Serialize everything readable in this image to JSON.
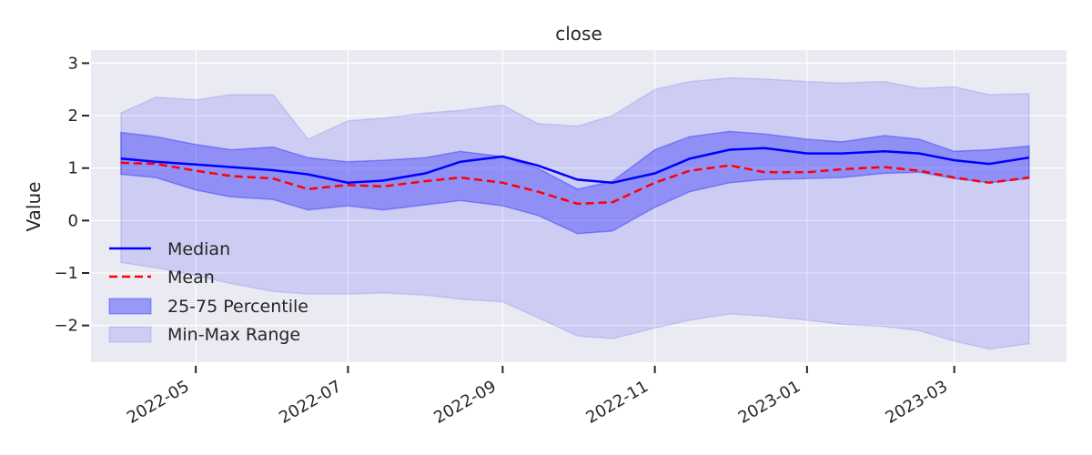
{
  "chart_data": {
    "type": "line",
    "title": "close",
    "xlabel": "",
    "ylabel": "Value",
    "xlim": [
      "2022-03-20",
      "2023-04-15"
    ],
    "ylim": [
      -2.7,
      3.25
    ],
    "grid": true,
    "legend_position": "lower-left",
    "y_ticks": [
      -2,
      -1,
      0,
      1,
      2,
      3
    ],
    "y_tick_labels": [
      "−2",
      "−1",
      "0",
      "1",
      "2",
      "3"
    ],
    "x_ticks": [
      "2022-05-01",
      "2022-07-01",
      "2022-09-01",
      "2022-11-01",
      "2023-01-01",
      "2023-03-01"
    ],
    "x_tick_labels": [
      "2022-05",
      "2022-07",
      "2022-09",
      "2022-11",
      "2023-01",
      "2023-03"
    ],
    "legend": [
      {
        "label": "Median",
        "style": "line",
        "color": "#0000ff"
      },
      {
        "label": "Mean",
        "style": "dashed",
        "color": "#ff0000"
      },
      {
        "label": "25-75 Percentile",
        "style": "band",
        "color": "#0000ff"
      },
      {
        "label": "Min-Max Range",
        "style": "band-light",
        "color": "#0000ff"
      }
    ],
    "x": [
      "2022-04-01",
      "2022-04-15",
      "2022-05-01",
      "2022-05-15",
      "2022-06-01",
      "2022-06-15",
      "2022-07-01",
      "2022-07-15",
      "2022-08-01",
      "2022-08-15",
      "2022-09-01",
      "2022-09-15",
      "2022-10-01",
      "2022-10-15",
      "2022-11-01",
      "2022-11-15",
      "2022-12-01",
      "2022-12-15",
      "2023-01-01",
      "2023-01-15",
      "2023-02-01",
      "2023-02-15",
      "2023-03-01",
      "2023-03-15",
      "2023-03-31"
    ],
    "series": [
      {
        "name": "Median",
        "values": [
          1.18,
          1.12,
          1.07,
          1.02,
          0.96,
          0.88,
          0.72,
          0.76,
          0.9,
          1.12,
          1.22,
          1.05,
          0.78,
          0.72,
          0.9,
          1.18,
          1.35,
          1.38,
          1.28,
          1.28,
          1.32,
          1.28,
          1.15,
          1.08,
          1.2
        ],
        "color": "#0000ff"
      },
      {
        "name": "Mean",
        "values": [
          1.1,
          1.08,
          0.95,
          0.85,
          0.8,
          0.6,
          0.68,
          0.65,
          0.75,
          0.82,
          0.72,
          0.55,
          0.32,
          0.35,
          0.72,
          0.95,
          1.05,
          0.92,
          0.92,
          0.98,
          1.02,
          0.95,
          0.82,
          0.72,
          0.82
        ],
        "color": "#ff0000"
      },
      {
        "name": "25-75 Percentile",
        "upper": [
          1.68,
          1.6,
          1.45,
          1.35,
          1.4,
          1.2,
          1.12,
          1.15,
          1.2,
          1.32,
          1.22,
          1.0,
          0.6,
          0.75,
          1.35,
          1.6,
          1.7,
          1.65,
          1.55,
          1.5,
          1.62,
          1.55,
          1.32,
          1.35,
          1.42
        ],
        "lower": [
          0.88,
          0.82,
          0.58,
          0.45,
          0.4,
          0.2,
          0.28,
          0.2,
          0.3,
          0.38,
          0.28,
          0.1,
          -0.25,
          -0.2,
          0.25,
          0.55,
          0.72,
          0.78,
          0.8,
          0.82,
          0.9,
          0.92,
          0.8,
          0.72,
          0.8
        ],
        "color": "#0000ff"
      },
      {
        "name": "Min-Max Range",
        "upper": [
          2.05,
          2.35,
          2.3,
          2.4,
          2.4,
          1.55,
          1.9,
          1.95,
          2.05,
          2.1,
          2.2,
          1.85,
          1.8,
          2.0,
          2.5,
          2.65,
          2.72,
          2.7,
          2.65,
          2.62,
          2.65,
          2.52,
          2.55,
          2.4,
          2.42
        ],
        "lower": [
          -0.8,
          -0.9,
          -1.05,
          -1.2,
          -1.35,
          -1.4,
          -1.4,
          -1.38,
          -1.42,
          -1.5,
          -1.55,
          -1.85,
          -2.2,
          -2.25,
          -2.05,
          -1.9,
          -1.78,
          -1.82,
          -1.9,
          -1.98,
          -2.02,
          -2.1,
          -2.3,
          -2.45,
          -2.35
        ],
        "color": "#0000ff"
      }
    ]
  }
}
